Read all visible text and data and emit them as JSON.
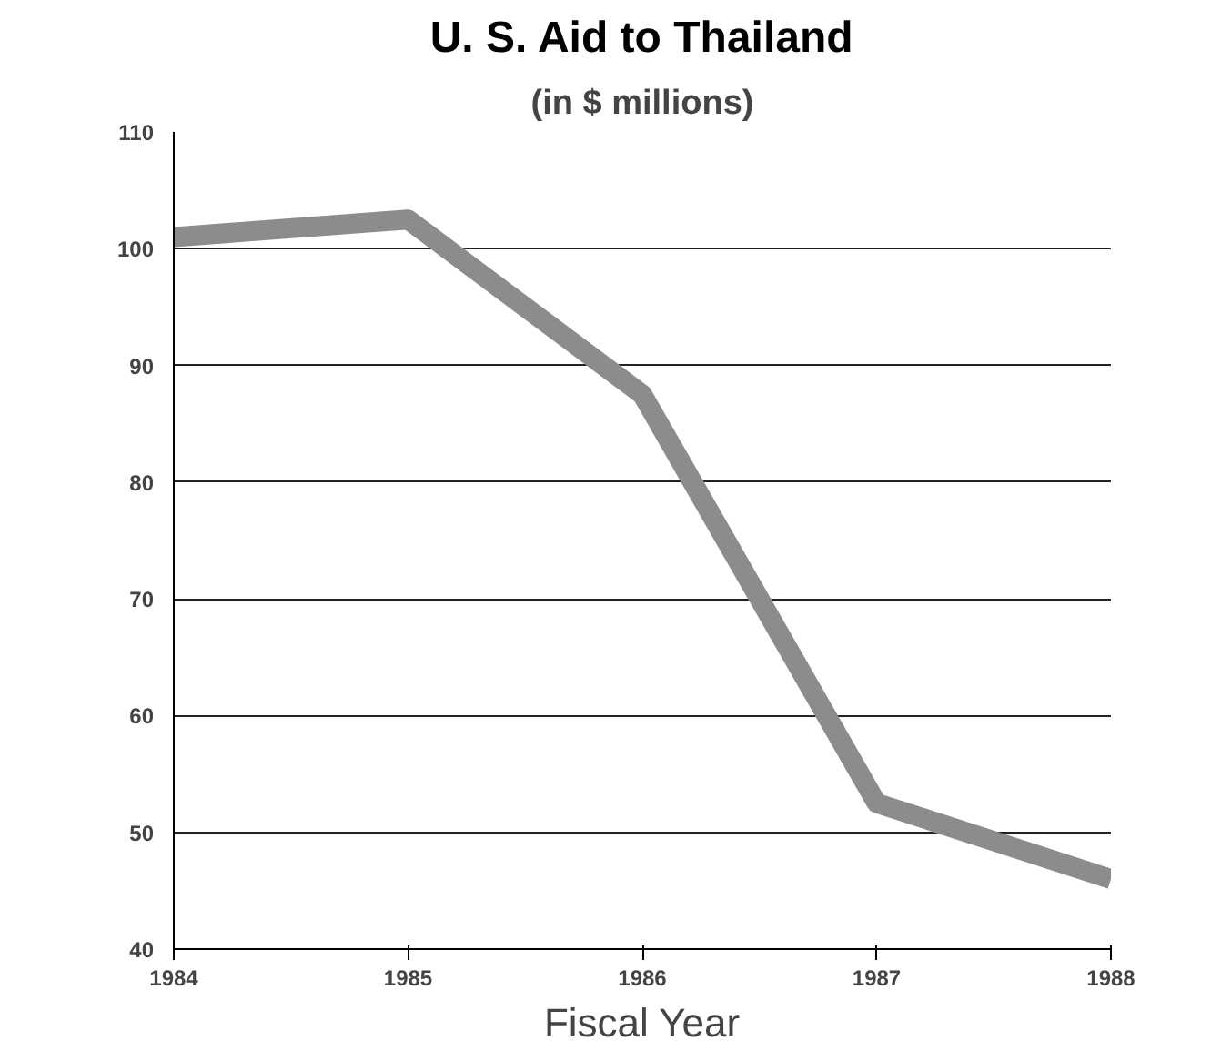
{
  "chart_data": {
    "type": "line",
    "title": "U. S. Aid to Thailand",
    "subtitle": "(in $ millions)",
    "xlabel": "Fiscal Year",
    "x": [
      1984,
      1985,
      1986,
      1987,
      1988
    ],
    "series": [
      {
        "color": "#8c8c8c",
        "values": [
          101,
          102.5,
          87.5,
          52.5,
          46
        ]
      }
    ],
    "xlim": [
      1984,
      1988
    ],
    "xticks": [
      1984,
      1985,
      1986,
      1987,
      1988
    ],
    "ylim": [
      40,
      110
    ],
    "yticks": [
      40,
      50,
      60,
      70,
      80,
      90,
      100,
      110
    ],
    "grid": "y",
    "marker": "none",
    "line_style": "solid"
  }
}
